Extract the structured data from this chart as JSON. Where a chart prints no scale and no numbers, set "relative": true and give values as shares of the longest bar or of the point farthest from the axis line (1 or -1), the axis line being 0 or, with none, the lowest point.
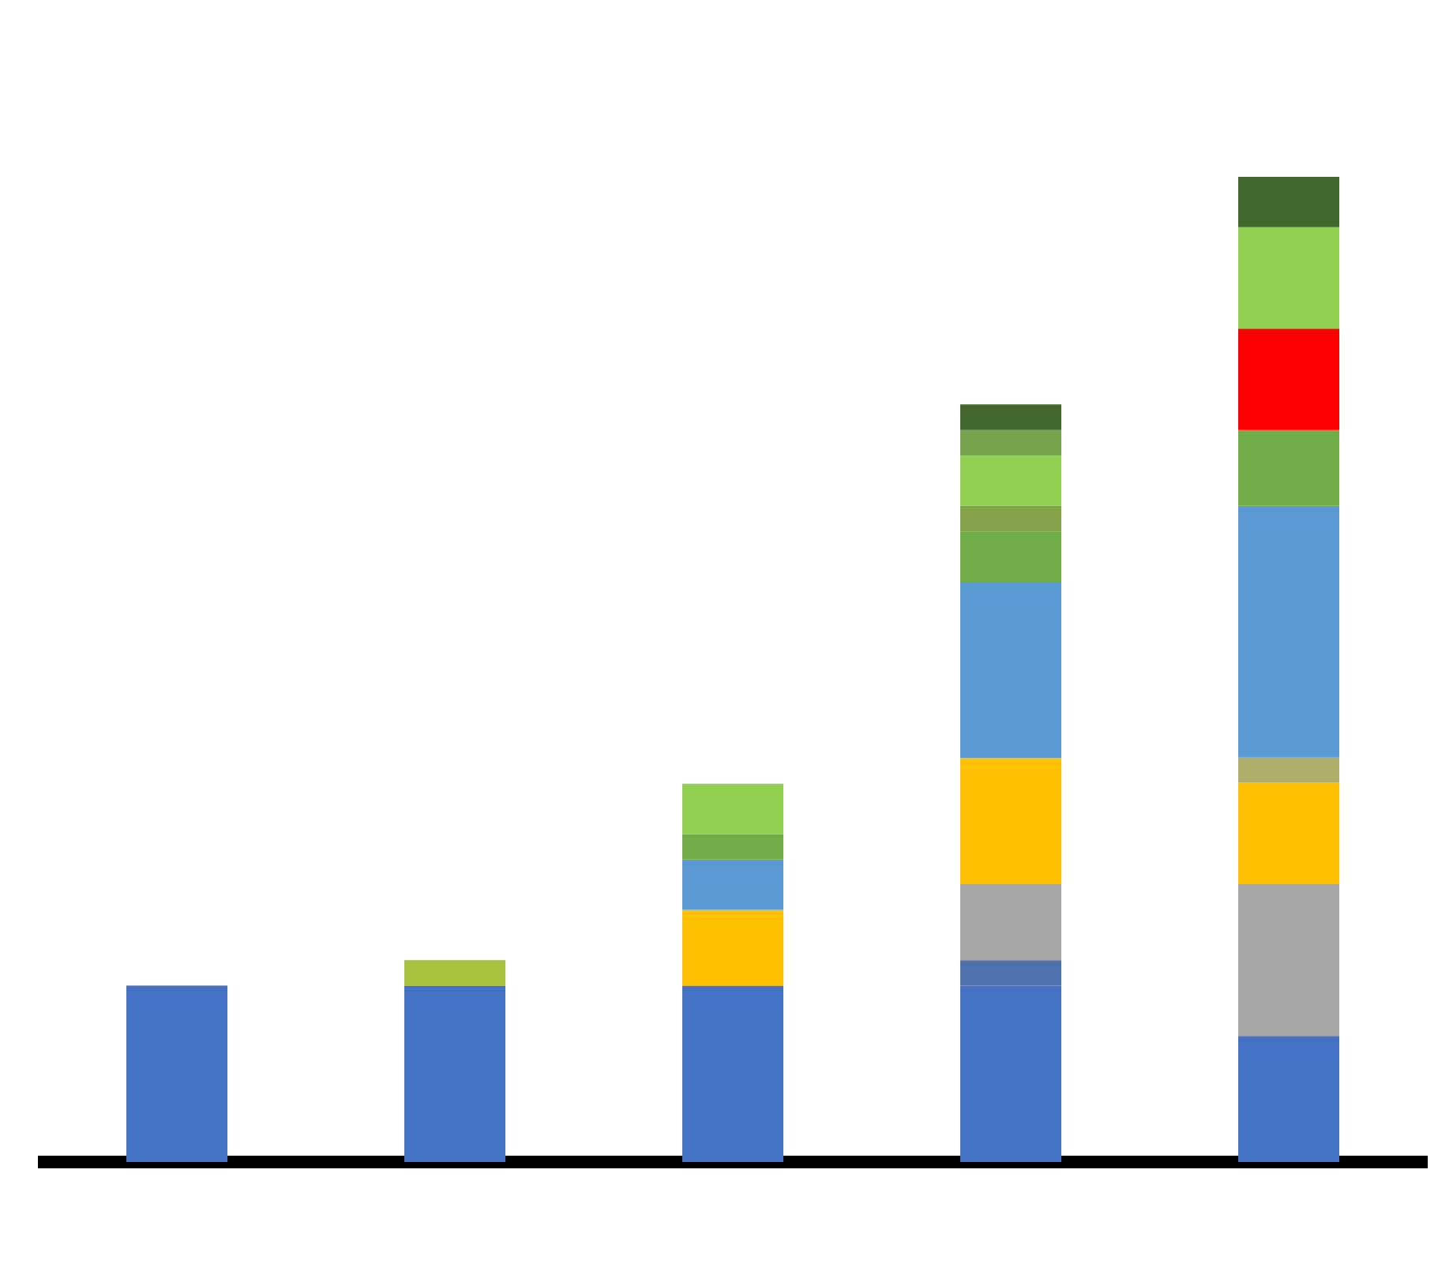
{
  "chart_data": {
    "type": "bar",
    "stacked": true,
    "relative": true,
    "categories": [
      null,
      null,
      null,
      null,
      null
    ],
    "series": [
      {
        "color": "#4472c4",
        "values": [
          0.179,
          0.179,
          0.179,
          0.179,
          0.128
        ]
      },
      {
        "color": "#a9c23f",
        "values": [
          null,
          0.026,
          null,
          null,
          null
        ]
      },
      {
        "color": "#4e71b0",
        "values": [
          null,
          null,
          null,
          0.026,
          null
        ]
      },
      {
        "color": "#a5a5a5",
        "values": [
          null,
          null,
          null,
          0.077,
          0.154
        ]
      },
      {
        "color": "#ffc000",
        "values": [
          null,
          null,
          0.077,
          0.128,
          0.103
        ]
      },
      {
        "color": "#b0ad6c",
        "values": [
          null,
          null,
          null,
          null,
          0.026
        ]
      },
      {
        "color": "#5b9bd5",
        "values": [
          null,
          null,
          0.051,
          0.179,
          0.255
        ]
      },
      {
        "color": "#70ad47",
        "values": [
          null,
          null,
          0.026,
          0.051,
          0.077
        ]
      },
      {
        "color": "#84a24a",
        "values": [
          null,
          null,
          null,
          0.026,
          null
        ]
      },
      {
        "color": "#ff0000",
        "values": [
          null,
          null,
          null,
          null,
          0.103
        ]
      },
      {
        "color": "#92d050",
        "values": [
          null,
          null,
          0.051,
          0.051,
          0.103
        ]
      },
      {
        "color": "#77a34a",
        "values": [
          null,
          null,
          null,
          0.026,
          null
        ]
      },
      {
        "color": "#43682b",
        "values": [
          null,
          null,
          null,
          0.026,
          0.051
        ]
      }
    ]
  }
}
